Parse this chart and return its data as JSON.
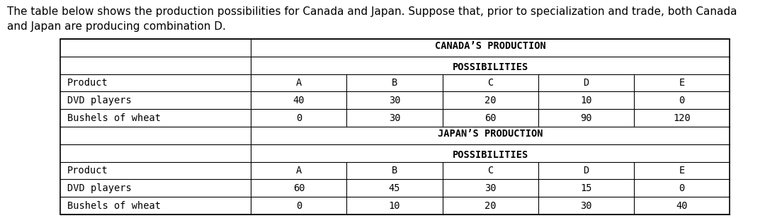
{
  "intro_text_line1": "The table below shows the production possibilities for Canada and Japan. Suppose that, prior to specialization and trade, both Canada",
  "intro_text_line2": "and Japan are producing combination D.",
  "canada_header_line1": "CANADA’S PRODUCTION",
  "canada_header_line2": "POSSIBILITIES",
  "japan_header_line1": "JAPAN’S PRODUCTION",
  "japan_header_line2": "POSSIBILITIES",
  "canada_rows": [
    [
      "Product",
      "A",
      "B",
      "C",
      "D",
      "E"
    ],
    [
      "DVD players",
      "40",
      "30",
      "20",
      "10",
      "0"
    ],
    [
      "Bushels of wheat",
      "0",
      "30",
      "60",
      "90",
      "120"
    ]
  ],
  "japan_rows": [
    [
      "Product",
      "A",
      "B",
      "C",
      "D",
      "E"
    ],
    [
      "DVD players",
      "60",
      "45",
      "30",
      "15",
      "0"
    ],
    [
      "Bushels of wheat",
      "0",
      "10",
      "20",
      "30",
      "40"
    ]
  ],
  "bg_color": "#ffffff",
  "intro_fontsize": 11.0,
  "table_fontsize": 9.8,
  "header_fontsize": 9.8,
  "font_family": "monospace"
}
